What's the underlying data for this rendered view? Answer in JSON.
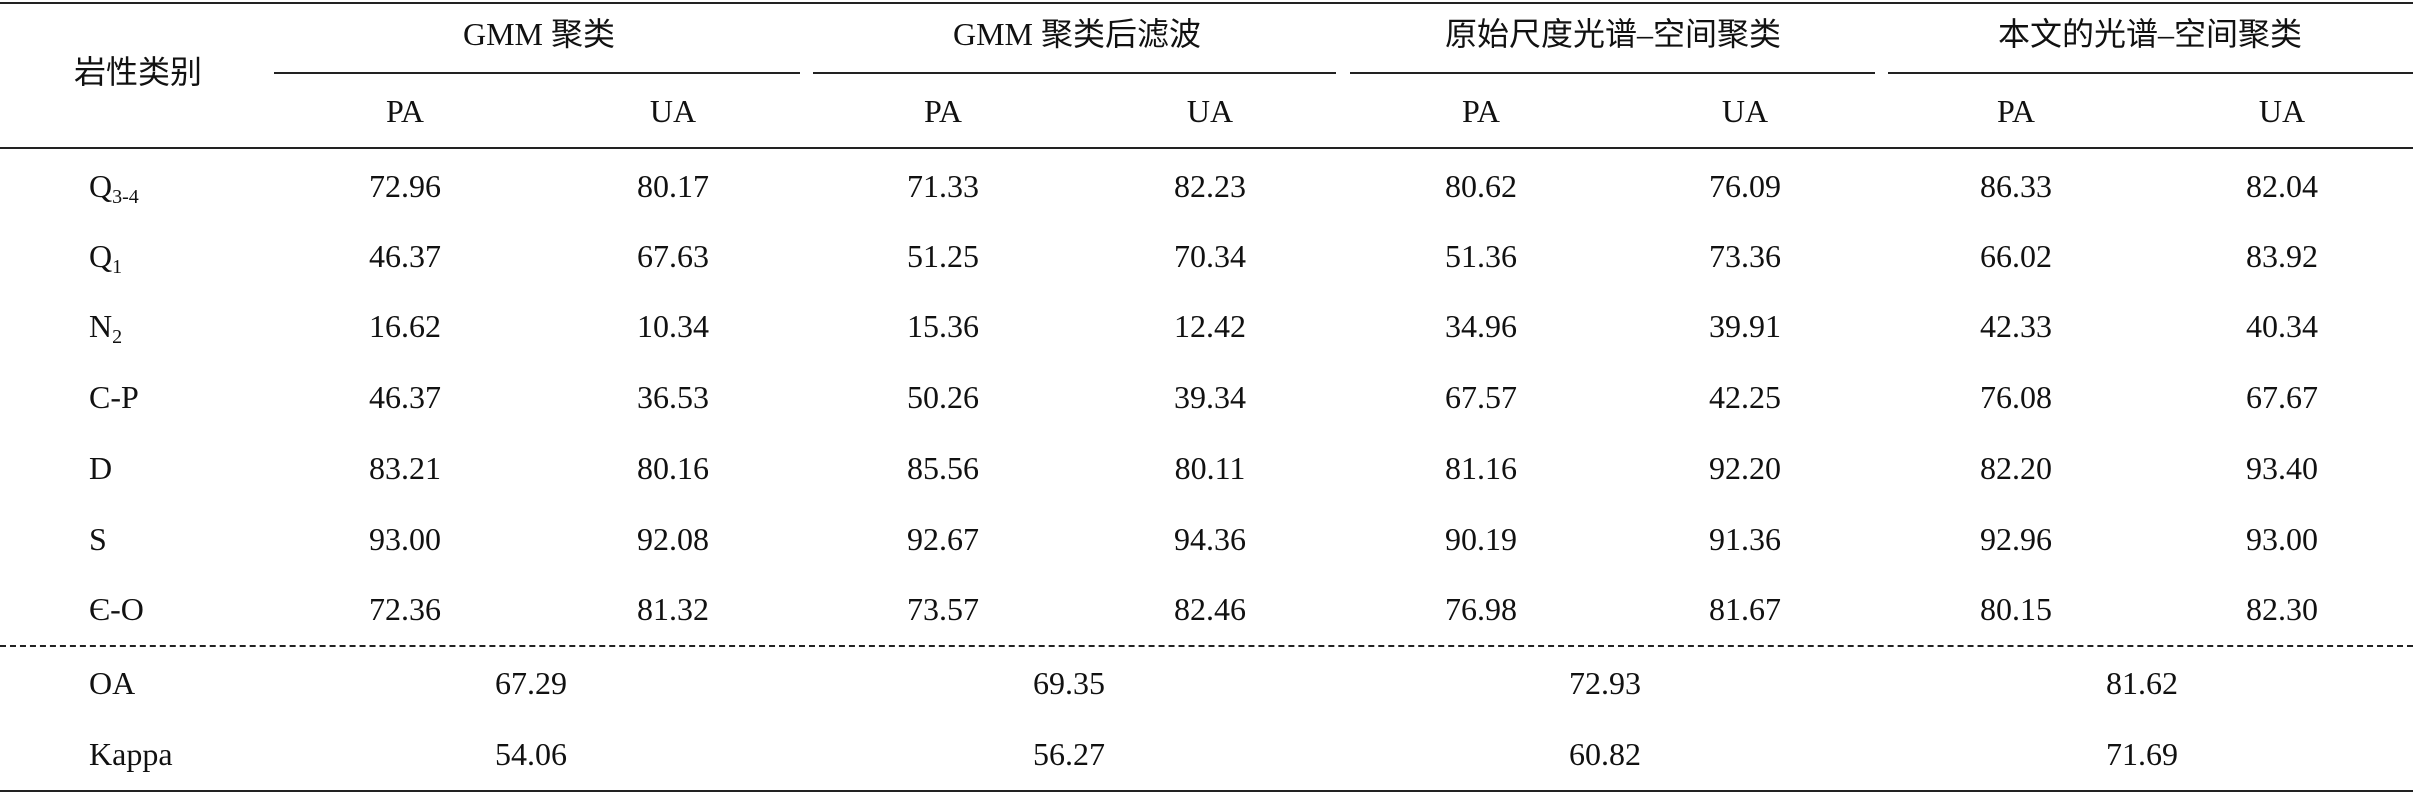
{
  "table": {
    "corner": "岩性类别",
    "groups": [
      {
        "title": "GMM 聚类",
        "columns": [
          "PA",
          "UA"
        ]
      },
      {
        "title": "GMM 聚类后滤波",
        "columns": [
          "PA",
          "UA"
        ]
      },
      {
        "title": "原始尺度光谱–空间聚类",
        "columns": [
          "PA",
          "UA"
        ]
      },
      {
        "title": "本文的光谱–空间聚类",
        "columns": [
          "PA",
          "UA"
        ]
      }
    ],
    "rows": [
      {
        "label": {
          "base": "Q",
          "sub": "3-4"
        },
        "values": [
          "72.96",
          "80.17",
          "71.33",
          "82.23",
          "80.62",
          "76.09",
          "86.33",
          "82.04"
        ]
      },
      {
        "label": {
          "base": "Q",
          "sub": "1"
        },
        "values": [
          "46.37",
          "67.63",
          "51.25",
          "70.34",
          "51.36",
          "73.36",
          "66.02",
          "83.92"
        ]
      },
      {
        "label": {
          "base": "N",
          "sub": "2"
        },
        "values": [
          "16.62",
          "10.34",
          "15.36",
          "12.42",
          "34.96",
          "39.91",
          "42.33",
          "40.34"
        ]
      },
      {
        "label": {
          "base": "C-P"
        },
        "values": [
          "46.37",
          "36.53",
          "50.26",
          "39.34",
          "67.57",
          "42.25",
          "76.08",
          "67.67"
        ]
      },
      {
        "label": {
          "base": "D"
        },
        "values": [
          "83.21",
          "80.16",
          "85.56",
          "80.11",
          "81.16",
          "92.20",
          "82.20",
          "93.40"
        ]
      },
      {
        "label": {
          "base": "S"
        },
        "values": [
          "93.00",
          "92.08",
          "92.67",
          "94.36",
          "90.19",
          "91.36",
          "92.96",
          "93.00"
        ]
      },
      {
        "label": {
          "base": "Є-O"
        },
        "values": [
          "72.36",
          "81.32",
          "73.57",
          "82.46",
          "76.98",
          "81.67",
          "80.15",
          "82.30"
        ]
      }
    ],
    "summary": [
      {
        "label": "OA",
        "values": [
          "67.29",
          "69.35",
          "72.93",
          "81.62"
        ]
      },
      {
        "label": "Kappa",
        "values": [
          "54.06",
          "56.27",
          "60.82",
          "71.69"
        ]
      }
    ]
  }
}
